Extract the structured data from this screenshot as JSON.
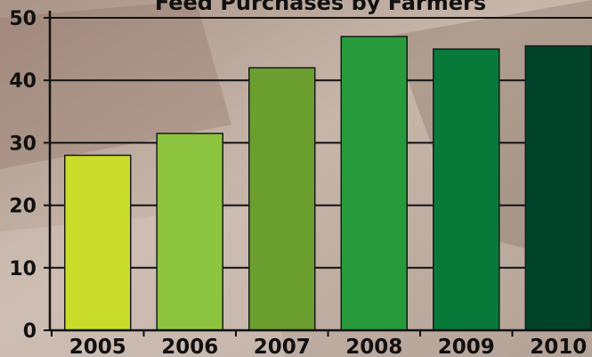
{
  "chart_data": {
    "type": "bar",
    "title": "Feed Purchases by Farmers",
    "xlabel": "",
    "ylabel": "",
    "categories": [
      "2005",
      "2006",
      "2007",
      "2008",
      "2009",
      "2010"
    ],
    "values": [
      28,
      31.5,
      42,
      47,
      45,
      45.5
    ],
    "bar_colors": [
      "#c9dc2a",
      "#8cc43f",
      "#6a9e2f",
      "#279b3c",
      "#077a3a",
      "#00432a"
    ],
    "ylim": [
      0,
      50
    ],
    "yticks": [
      "0",
      "10",
      "20",
      "30",
      "40",
      "50"
    ],
    "grid": true,
    "legend": "none"
  }
}
